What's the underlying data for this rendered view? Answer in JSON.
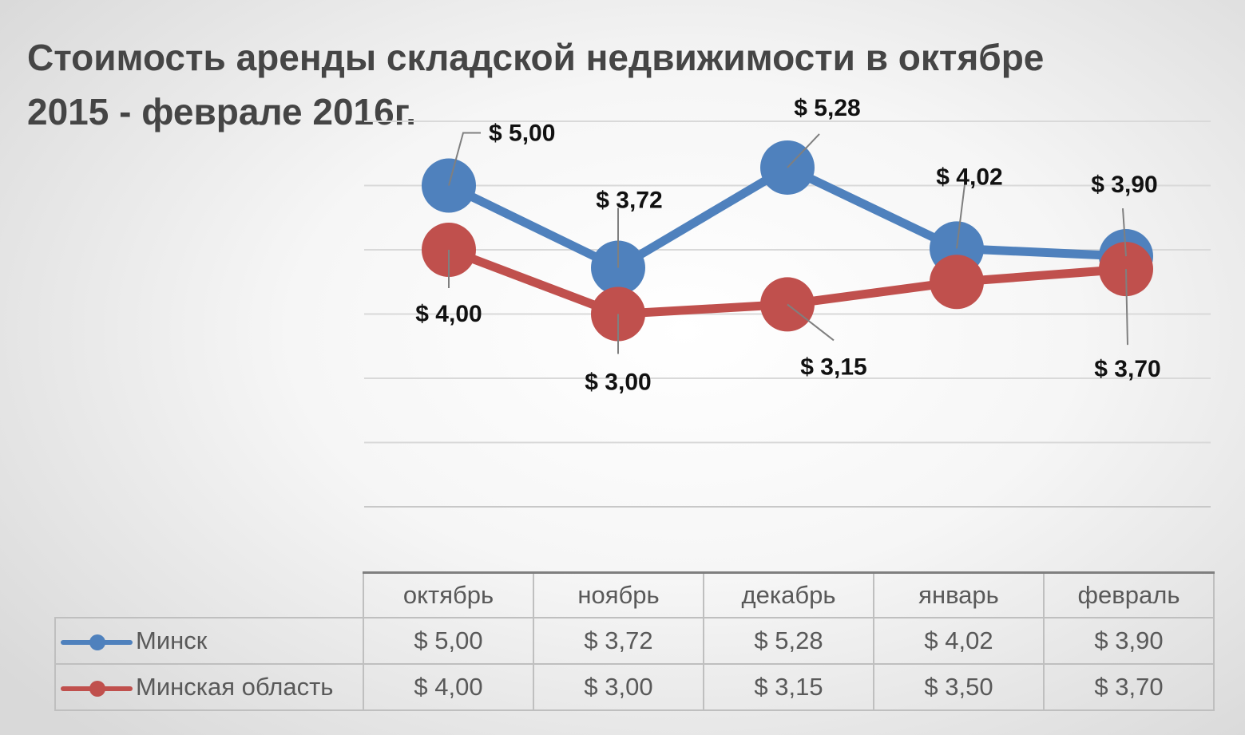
{
  "chart_data": {
    "type": "line",
    "title": "Стоимость аренды складской недвижимости в октябре 2015 - феврале 2016г.",
    "categories": [
      "октябрь",
      "ноябрь",
      "декабрь",
      "январь",
      "февраль"
    ],
    "series": [
      {
        "name": "Минск",
        "color": "#4f81bd",
        "values": [
          5.0,
          3.72,
          5.28,
          4.02,
          3.9
        ],
        "labels": [
          "$ 5,00",
          "$ 3,72",
          "$ 5,28",
          "$ 4,02",
          "$ 3,90"
        ]
      },
      {
        "name": "Минская область",
        "color": "#c0504d",
        "values": [
          4.0,
          3.0,
          3.15,
          3.5,
          3.7
        ],
        "labels": [
          "$ 4,00",
          "$ 3,00",
          "$ 3,15",
          "$ 3,50",
          "$ 3,70"
        ]
      }
    ],
    "ylim": [
      0,
      6
    ],
    "grid": true,
    "xlabel": "",
    "ylabel": "",
    "data_table": true,
    "data_labels_shown": [
      [
        0,
        1,
        2,
        3,
        4
      ],
      [
        0,
        1,
        2,
        4
      ]
    ]
  }
}
